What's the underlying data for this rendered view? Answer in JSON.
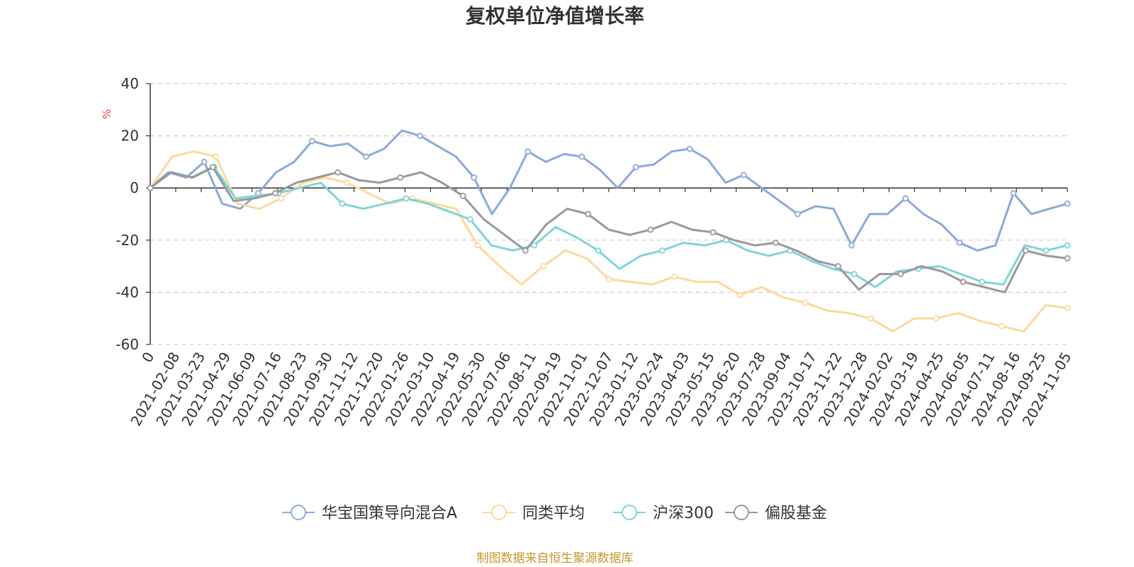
{
  "chart_data": {
    "type": "line",
    "title": "复权单位净值增长率",
    "ylabel": "%",
    "ylim": [
      -60,
      40
    ],
    "yticks": [
      "40",
      "20",
      "0",
      "-20",
      "-40",
      "-60"
    ],
    "yticks_values": [
      40,
      20,
      0,
      -20,
      -40,
      -60
    ],
    "x_first_label": "0",
    "x_labels": [
      "2021-02-08",
      "2021-03-23",
      "2021-04-29",
      "2021-06-09",
      "2021-07-16",
      "2021-08-23",
      "2021-09-30",
      "2021-11-12",
      "2021-12-20",
      "2022-01-26",
      "2022-03-10",
      "2022-04-19",
      "2022-05-30",
      "2022-07-06",
      "2022-08-11",
      "2022-09-19",
      "2022-11-01",
      "2022-12-07",
      "2023-01-12",
      "2023-02-24",
      "2023-04-03",
      "2023-05-15",
      "2023-06-20",
      "2023-07-28",
      "2023-09-04",
      "2023-10-17",
      "2023-11-22",
      "2023-12-28",
      "2024-02-02",
      "2024-03-19",
      "2024-04-25",
      "2024-06-05",
      "2024-07-11",
      "2024-08-16",
      "2024-09-25",
      "2024-11-05"
    ],
    "grid": true,
    "legend_position": "bottom",
    "source_note": "制图数据来自恒生聚源数据库",
    "series": [
      {
        "name": "华宝国策导向混合A",
        "color": "#8caad8",
        "values": [
          0,
          6,
          4,
          10,
          -6,
          -8,
          -2,
          6,
          10,
          18,
          16,
          17,
          12,
          15,
          22,
          20,
          16,
          12,
          4,
          -10,
          0,
          14,
          10,
          13,
          12,
          7,
          0,
          8,
          9,
          14,
          15,
          11,
          2,
          5,
          0,
          -5,
          -10,
          -7,
          -8,
          -22,
          -10,
          -10,
          -4,
          -10,
          -14,
          -21,
          -24,
          -22,
          -2,
          -10,
          -8,
          -6
        ]
      },
      {
        "name": "同类平均",
        "color": "#fdd999",
        "values": [
          0,
          12,
          14,
          12,
          -6,
          -8,
          -4,
          2,
          4,
          2,
          -2,
          -6,
          -4,
          -6,
          -8,
          -22,
          -30,
          -37,
          -30,
          -24,
          -27,
          -35,
          -36,
          -37,
          -34,
          -36,
          -36,
          -41,
          -38,
          -42,
          -44,
          -47,
          -48,
          -50,
          -55,
          -50,
          -50,
          -48,
          -51,
          -53,
          -55,
          -45,
          -46
        ]
      },
      {
        "name": "沪深300",
        "color": "#7fd5d8",
        "values": [
          0,
          6,
          4,
          8,
          -4,
          -3,
          -2,
          0,
          2,
          -6,
          -8,
          -6,
          -4,
          -6,
          -9,
          -12,
          -22,
          -24,
          -22,
          -15,
          -19,
          -24,
          -31,
          -26,
          -24,
          -21,
          -22,
          -20,
          -24,
          -26,
          -24,
          -28,
          -31,
          -33,
          -38,
          -32,
          -31,
          -30,
          -33,
          -36,
          -37,
          -22,
          -24,
          -22
        ]
      },
      {
        "name": "偏股基金",
        "color": "#999999",
        "values": [
          0,
          6,
          4,
          8,
          -5,
          -4,
          -2,
          2,
          4,
          6,
          3,
          2,
          4,
          6,
          2,
          -3,
          -12,
          -18,
          -24,
          -14,
          -8,
          -10,
          -16,
          -18,
          -16,
          -13,
          -16,
          -17,
          -20,
          -22,
          -21,
          -24,
          -28,
          -30,
          -39,
          -33,
          -33,
          -30,
          -32,
          -36,
          -38,
          -40,
          -24,
          -26,
          -27
        ]
      }
    ]
  }
}
